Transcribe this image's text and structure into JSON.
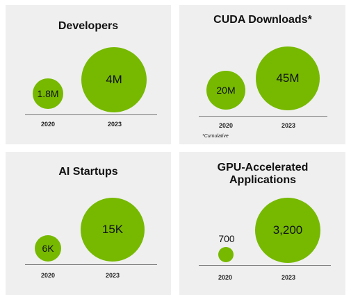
{
  "chart_data": [
    {
      "type": "bubble",
      "title": "Developers",
      "categories": [
        "2020",
        "2023"
      ],
      "values": [
        1.8,
        4
      ],
      "value_labels": [
        "1.8M",
        "4M"
      ],
      "unit": "millions"
    },
    {
      "type": "bubble",
      "title": "CUDA Downloads*",
      "categories": [
        "2020",
        "2023"
      ],
      "values": [
        20,
        45
      ],
      "value_labels": [
        "20M",
        "45M"
      ],
      "unit": "millions",
      "footnote": "*Cumulative"
    },
    {
      "type": "bubble",
      "title": "AI Startups",
      "categories": [
        "2020",
        "2023"
      ],
      "values": [
        6,
        15
      ],
      "value_labels": [
        "6K",
        "15K"
      ],
      "unit": "thousands"
    },
    {
      "type": "bubble",
      "title": "GPU-Accelerated Applications",
      "categories": [
        "2020",
        "2023"
      ],
      "values": [
        700,
        3200
      ],
      "value_labels": [
        "700",
        "3,200"
      ]
    }
  ],
  "colors": {
    "bubble": "#76b900",
    "panel": "#efefef"
  }
}
